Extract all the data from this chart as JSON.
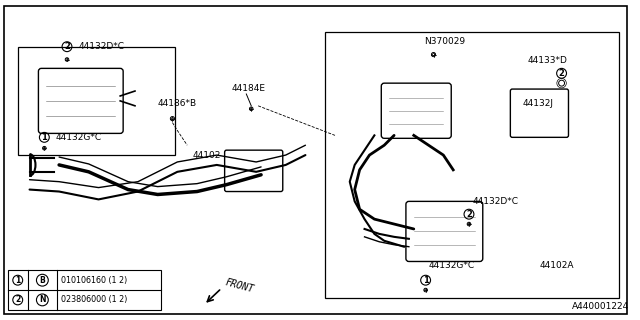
{
  "bg_color": "#ffffff",
  "border_color": "#000000",
  "line_color": "#000000",
  "title": "A440001224",
  "labels": {
    "44132D_C_top": "44132D*C",
    "44132G_C_left": "44132G*C",
    "44186_B": "44186*B",
    "44184E": "44184E",
    "44102": "44102",
    "N370029": "N370029",
    "44133_D": "44133*D",
    "44132J": "44132J",
    "44132D_C_bot": "44132D*C",
    "44132G_C_right": "44132G*C",
    "44102A": "44102A"
  },
  "legend_items": [
    {
      "num": "1",
      "circle_char": "B",
      "code": "010106160",
      "qty": "(1 2)"
    },
    {
      "num": "2",
      "circle_char": "N",
      "code": "023806000",
      "qty": "(1 2)"
    }
  ],
  "front_label": "FRONT"
}
